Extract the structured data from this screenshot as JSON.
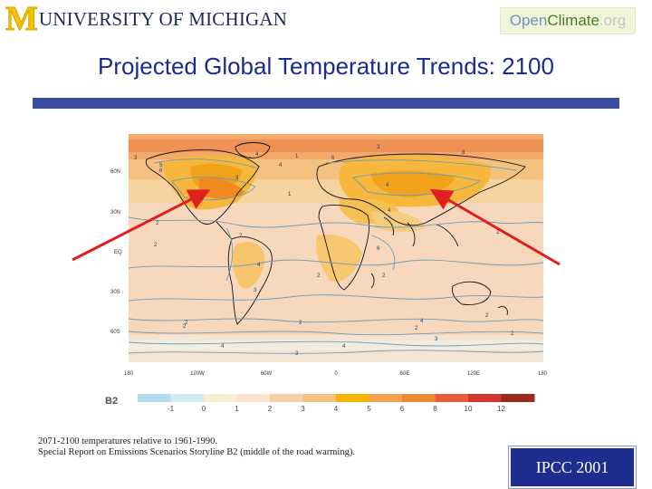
{
  "header": {
    "university_logo": "UNIVERSITY OF MICHIGAN",
    "openclimate_logo": {
      "part1": "Open",
      "part2": "Climate",
      "part3": ".org"
    }
  },
  "title": "Projected Global Temperature Trends: 2100",
  "map": {
    "lat_labels": [
      "60N",
      "30N",
      "EQ",
      "30S",
      "60S"
    ],
    "lon_labels": [
      "180",
      "120W",
      "60W",
      "0",
      "60E",
      "120E",
      "180"
    ],
    "contour_labels": [
      "3",
      "5",
      "6",
      "4",
      "4",
      "1",
      "3",
      "1",
      "6",
      "3",
      "8",
      "4",
      "4",
      "2",
      "2",
      "2",
      "2",
      "3",
      "2",
      "4",
      "2",
      "2",
      "2",
      "2",
      "2",
      "2",
      "4",
      "4",
      "3",
      "3",
      "6",
      "2",
      "4"
    ],
    "legend": {
      "label": "B2",
      "ticks": [
        "-1",
        "0",
        "1",
        "2",
        "3",
        "4",
        "5",
        "6",
        "8",
        "10",
        "12"
      ],
      "colors": [
        "#b4dcf0",
        "#d2eaf4",
        "#f5f0d2",
        "#fbe3cf",
        "#f6cfa9",
        "#f5c081",
        "#f5b400",
        "#f5a04a",
        "#ef8a32",
        "#e65d3e",
        "#cd3830",
        "#9a2a1e"
      ]
    }
  },
  "caption": {
    "line1": "2071-2100 temperatures relative to 1961-1990.",
    "line2": "Special Report on Emissions Scenarios Storyline B2 (middle of the road warming)."
  },
  "badge": "IPCC 2001",
  "colors": {
    "title": "#1a2c8c",
    "rule": "#3b4c9c",
    "badge": "#1d2d8f",
    "arrow": "#e02020"
  }
}
